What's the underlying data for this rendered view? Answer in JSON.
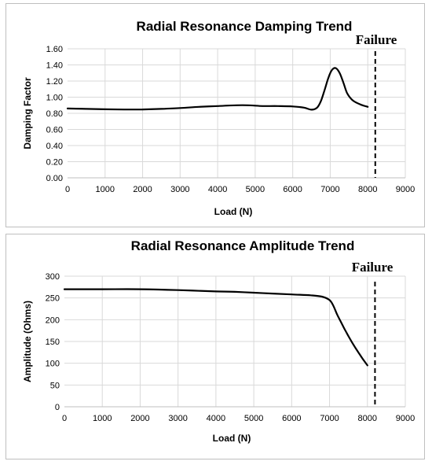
{
  "chart_data": [
    {
      "type": "line",
      "title": "Radial Resonance Damping Trend",
      "xlabel": "Load (N)",
      "ylabel": "Damping Factor",
      "xlim": [
        0,
        9000
      ],
      "ylim": [
        0,
        1.6
      ],
      "x_ticks": [
        "0",
        "1000",
        "2000",
        "3000",
        "4000",
        "5000",
        "6000",
        "7000",
        "8000",
        "9000"
      ],
      "y_ticks": [
        "0.00",
        "0.20",
        "0.40",
        "0.60",
        "0.80",
        "1.00",
        "1.20",
        "1.40",
        "1.60"
      ],
      "grid": true,
      "series": [
        {
          "x": [
            0,
            500,
            1000,
            1500,
            2000,
            2500,
            3000,
            3500,
            4000,
            4500,
            4800,
            5200,
            5600,
            6000,
            6300,
            6500,
            6650,
            6750,
            6850,
            6950,
            7050,
            7150,
            7250,
            7350,
            7450,
            7600,
            7800,
            8000
          ],
          "y": [
            0.86,
            0.855,
            0.85,
            0.847,
            0.848,
            0.855,
            0.865,
            0.88,
            0.89,
            0.9,
            0.9,
            0.89,
            0.89,
            0.885,
            0.87,
            0.845,
            0.87,
            0.95,
            1.09,
            1.24,
            1.34,
            1.36,
            1.3,
            1.18,
            1.05,
            0.96,
            0.91,
            0.88
          ]
        }
      ],
      "annotation": {
        "text": "Failure",
        "x": 8200
      }
    },
    {
      "type": "line",
      "title": "Radial Resonance Amplitude Trend",
      "xlabel": "Load (N)",
      "ylabel": "Amplitude (Ohms)",
      "xlim": [
        0,
        9000
      ],
      "ylim": [
        0,
        300
      ],
      "x_ticks": [
        "0",
        "1000",
        "2000",
        "3000",
        "4000",
        "5000",
        "6000",
        "7000",
        "8000",
        "9000"
      ],
      "y_ticks": [
        "0",
        "50",
        "100",
        "150",
        "200",
        "250",
        "300"
      ],
      "grid": true,
      "series": [
        {
          "x": [
            0,
            1000,
            2000,
            3000,
            4000,
            4500,
            5000,
            5500,
            6000,
            6500,
            6800,
            7000,
            7100,
            7200,
            7300,
            7400,
            7500,
            7600,
            7700,
            7800,
            7900,
            8000
          ],
          "y": [
            270,
            270,
            270,
            268,
            265,
            264,
            262,
            260,
            258,
            256,
            253,
            245,
            232,
            212,
            195,
            178,
            162,
            147,
            133,
            120,
            107,
            95
          ]
        }
      ],
      "annotation": {
        "text": "Failure",
        "x": 8200
      }
    }
  ]
}
